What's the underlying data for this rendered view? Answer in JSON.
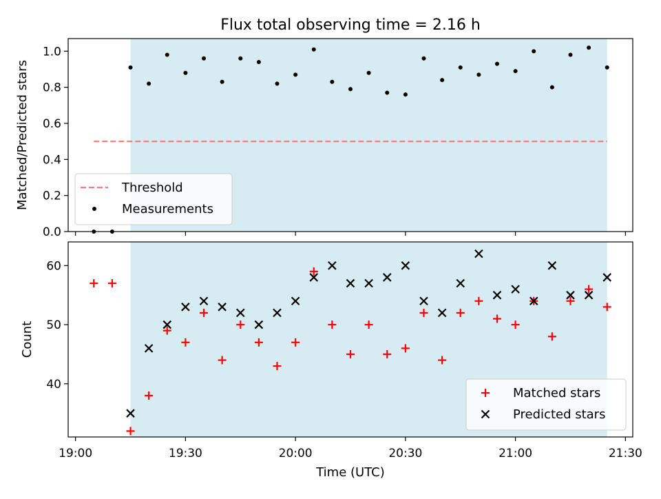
{
  "chart_data": {
    "type": "scatter",
    "title": "Flux total observing time = 2.16 h",
    "xlabel": "Time (UTC)",
    "x_tick_labels": [
      "19:00",
      "19:30",
      "20:00",
      "20:30",
      "21:00",
      "21:30"
    ],
    "x_tick_minutes": [
      0,
      30,
      60,
      90,
      120,
      150
    ],
    "xlim_minutes": [
      -2,
      152
    ],
    "shaded_span_minutes": [
      15,
      145
    ],
    "colors": {
      "shade": "#add8e6",
      "threshold": "#f08080",
      "matched": "#ff0000",
      "predicted": "#000000",
      "measurements": "#000000"
    },
    "panels": [
      {
        "ylabel": "Matched/Predicted stars",
        "ylim": [
          0,
          1.07
        ],
        "y_ticks": [
          0.0,
          0.2,
          0.4,
          0.6,
          0.8,
          1.0
        ],
        "y_tick_labels": [
          "0.0",
          "0.2",
          "0.4",
          "0.6",
          "0.8",
          "1.0"
        ],
        "legend_position": "lower-left",
        "threshold": {
          "name": "Threshold",
          "value": 0.5,
          "x_range_minutes": [
            5,
            145
          ]
        },
        "series": [
          {
            "name": "Measurements",
            "style": "dot",
            "x_minutes": [
              5,
              10,
              15,
              20,
              25,
              30,
              35,
              40,
              45,
              50,
              55,
              60,
              65,
              70,
              75,
              80,
              85,
              90,
              95,
              100,
              105,
              110,
              115,
              120,
              125,
              130,
              135,
              140,
              145
            ],
            "y": [
              0.0,
              0.0,
              0.91,
              0.82,
              0.98,
              0.88,
              0.96,
              0.83,
              0.96,
              0.94,
              0.82,
              0.87,
              1.01,
              0.83,
              0.79,
              0.88,
              0.77,
              0.76,
              0.96,
              0.84,
              0.91,
              0.87,
              0.93,
              0.89,
              1.0,
              0.8,
              0.98,
              1.02,
              0.91
            ]
          }
        ]
      },
      {
        "ylabel": "Count",
        "ylim": [
          31,
          64
        ],
        "y_ticks": [
          40,
          50,
          60
        ],
        "y_tick_labels": [
          "40",
          "50",
          "60"
        ],
        "legend_position": "lower-right",
        "series": [
          {
            "name": "Matched stars",
            "style": "plus",
            "x_minutes": [
              5,
              10,
              15,
              20,
              25,
              30,
              35,
              40,
              45,
              50,
              55,
              60,
              65,
              70,
              75,
              80,
              85,
              90,
              95,
              100,
              105,
              110,
              115,
              120,
              125,
              130,
              135,
              140,
              145
            ],
            "y": [
              57,
              57,
              32,
              38,
              49,
              47,
              52,
              44,
              50,
              47,
              43,
              47,
              59,
              50,
              45,
              50,
              45,
              46,
              52,
              44,
              52,
              54,
              51,
              50,
              54,
              48,
              54,
              56,
              53
            ]
          },
          {
            "name": "Predicted stars",
            "style": "x",
            "x_minutes": [
              15,
              20,
              25,
              30,
              35,
              40,
              45,
              50,
              55,
              60,
              65,
              70,
              75,
              80,
              85,
              90,
              95,
              100,
              105,
              110,
              115,
              120,
              125,
              130,
              135,
              140,
              145
            ],
            "y": [
              35,
              46,
              50,
              53,
              54,
              53,
              52,
              50,
              52,
              54,
              58,
              60,
              57,
              57,
              58,
              60,
              54,
              52,
              57,
              62,
              55,
              56,
              54,
              60,
              55,
              55,
              58
            ]
          }
        ]
      }
    ]
  }
}
